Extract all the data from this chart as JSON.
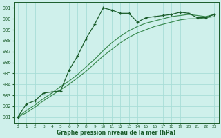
{
  "bg_color": "#cff0eb",
  "grid_color": "#a8ddd7",
  "line_color_dark": "#1a5c2a",
  "line_color_light": "#3a8a50",
  "xlabel": "Graphe pression niveau de la mer (hPa)",
  "xlim": [
    -0.5,
    23.5
  ],
  "ylim": [
    980.5,
    991.5
  ],
  "yticks": [
    981,
    982,
    983,
    984,
    985,
    986,
    987,
    988,
    989,
    990,
    991
  ],
  "xticks": [
    0,
    1,
    2,
    3,
    4,
    5,
    6,
    7,
    8,
    9,
    10,
    11,
    12,
    13,
    14,
    15,
    16,
    17,
    18,
    19,
    20,
    21,
    22,
    23
  ],
  "jagged_x": [
    0,
    1,
    2,
    3,
    4,
    5,
    6,
    7,
    8,
    9,
    10,
    11,
    12,
    13,
    14,
    15,
    16,
    17,
    18,
    19,
    20,
    21,
    22,
    23
  ],
  "jagged_y": [
    981.0,
    982.2,
    982.5,
    983.2,
    983.3,
    983.4,
    985.3,
    986.6,
    988.2,
    989.5,
    991.0,
    990.8,
    990.5,
    990.5,
    989.7,
    990.1,
    990.2,
    990.3,
    990.4,
    990.6,
    990.5,
    990.1,
    990.1,
    990.4
  ],
  "smooth1_x": [
    0,
    1,
    2,
    3,
    4,
    5,
    6,
    7,
    8,
    9,
    10,
    11,
    12,
    13,
    14,
    15,
    16,
    17,
    18,
    19,
    20,
    21,
    22,
    23
  ],
  "smooth1_y": [
    981.0,
    981.4,
    981.9,
    982.5,
    983.0,
    983.5,
    984.0,
    984.6,
    985.2,
    985.9,
    986.6,
    987.2,
    987.8,
    988.3,
    988.7,
    989.0,
    989.3,
    989.5,
    989.7,
    989.9,
    990.0,
    990.0,
    990.1,
    990.2
  ],
  "smooth2_x": [
    0,
    1,
    2,
    3,
    4,
    5,
    6,
    7,
    8,
    9,
    10,
    11,
    12,
    13,
    14,
    15,
    16,
    17,
    18,
    19,
    20,
    21,
    22,
    23
  ],
  "smooth2_y": [
    981.0,
    981.6,
    982.1,
    982.7,
    983.2,
    983.8,
    984.3,
    984.9,
    985.6,
    986.3,
    987.1,
    987.8,
    988.4,
    988.9,
    989.3,
    989.6,
    989.8,
    990.0,
    990.2,
    990.3,
    990.4,
    990.3,
    990.2,
    990.4
  ]
}
